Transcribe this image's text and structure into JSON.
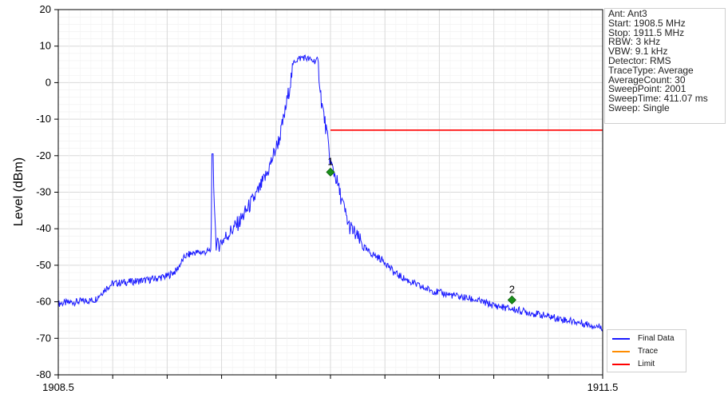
{
  "chart_data": {
    "type": "line",
    "title": "",
    "xlabel": "",
    "ylabel": "Level (dBm)",
    "xlim": [
      1908.5,
      1911.5
    ],
    "ylim": [
      -80,
      20
    ],
    "x_tick_labels": [
      {
        "value": 1908.5,
        "label": "1908.5"
      },
      {
        "value": 1911.5,
        "label": "1911.5"
      }
    ],
    "x_grid_count": 10,
    "y_ticks": [
      20,
      10,
      0,
      -10,
      -20,
      -30,
      -40,
      -50,
      -60,
      -70,
      -80
    ],
    "grid": true,
    "legend_placement": "bottom-right",
    "series": [
      {
        "name": "Final Data",
        "color": "#1a1aff",
        "x": [
          1908.5,
          1908.7,
          1908.77,
          1908.8,
          1908.9,
          1909.0,
          1909.1,
          1909.15,
          1909.2,
          1909.25,
          1909.3,
          1909.34,
          1909.35,
          1909.37,
          1909.4,
          1909.5,
          1909.6,
          1909.65,
          1909.72,
          1909.75,
          1909.8,
          1909.85,
          1909.9,
          1909.93,
          1909.95,
          1909.98,
          1910.0,
          1910.03,
          1910.05,
          1910.1,
          1910.2,
          1910.3,
          1910.35,
          1910.4,
          1910.5,
          1910.6,
          1910.7,
          1910.8,
          1910.9,
          1911.0,
          1911.1,
          1911.2,
          1911.3,
          1911.4,
          1911.5
        ],
        "y": [
          -60.5,
          -59.5,
          -56,
          -55,
          -54.5,
          -54,
          -53,
          -51.5,
          -47.5,
          -46.5,
          -46.5,
          -46,
          -19.5,
          -45,
          -43.5,
          -38,
          -30,
          -25,
          -15,
          -8,
          6,
          7,
          6,
          6,
          -5,
          -14,
          -22,
          -26,
          -30,
          -39,
          -46,
          -49,
          -52,
          -53.5,
          -56,
          -57.5,
          -58.5,
          -59.5,
          -61,
          -62,
          -63,
          -64,
          -65,
          -66,
          -67
        ]
      },
      {
        "name": "Trace",
        "color": "#ff8c00",
        "x": [],
        "y": []
      },
      {
        "name": "Limit",
        "color": "#ff0000",
        "x": [
          1910.0,
          1911.5
        ],
        "y": [
          -13,
          -13
        ]
      }
    ],
    "markers": [
      {
        "label": "1",
        "x": 1910.0,
        "y": -24.5,
        "color": "#1a8f1a"
      },
      {
        "label": "2",
        "x": 1911.0,
        "y": -59.5,
        "color": "#1a8f1a"
      }
    ]
  },
  "info_box": {
    "lines": [
      "Ant: Ant3",
      "Start: 1908.5 MHz",
      "Stop: 1911.5 MHz",
      "RBW: 3 kHz",
      "VBW: 9.1 kHz",
      "Detector: RMS",
      "TraceType: Average",
      "AverageCount: 30",
      "SweepPoint: 2001",
      "SweepTime: 411.07 ms",
      "Sweep: Single"
    ]
  }
}
